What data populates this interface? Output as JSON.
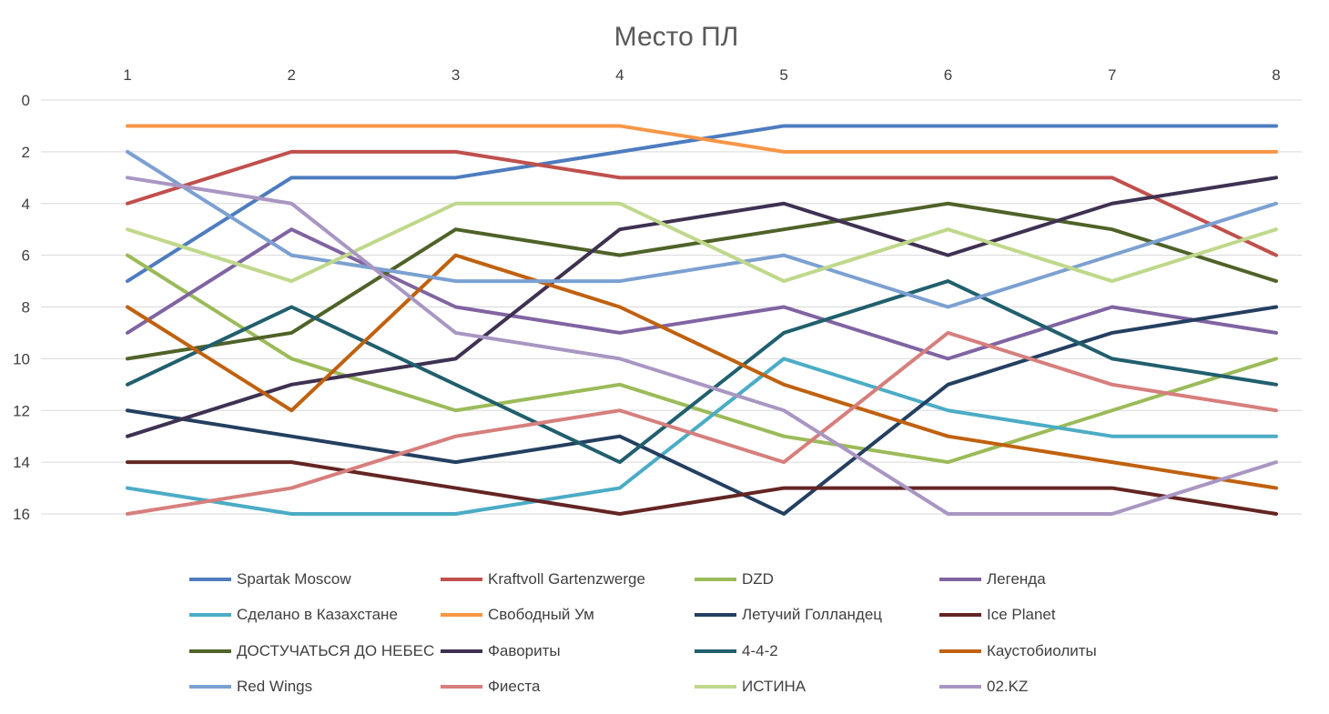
{
  "chart_data": {
    "type": "line",
    "title": "Место ПЛ",
    "xlabel": "",
    "ylabel": "",
    "x": [
      1,
      2,
      3,
      4,
      5,
      6,
      7,
      8
    ],
    "x_tick_labels": [
      "1",
      "2",
      "3",
      "4",
      "5",
      "6",
      "7",
      "8"
    ],
    "x_axis_position": "top",
    "ylim": [
      0,
      16
    ],
    "y_reversed": true,
    "y_ticks": [
      0,
      2,
      4,
      6,
      8,
      10,
      12,
      14,
      16
    ],
    "y_tick_labels": [
      "0",
      "2",
      "4",
      "6",
      "8",
      "10",
      "12",
      "14",
      "16"
    ],
    "grid": true,
    "legend_position": "bottom",
    "series": [
      {
        "name": "Spartak Moscow",
        "color": "#4e7cbf",
        "values": [
          7,
          3,
          3,
          2,
          1,
          1,
          1,
          1
        ]
      },
      {
        "name": "Kraftvoll Gartenzwerge",
        "color": "#c0504d",
        "values": [
          4,
          2,
          2,
          3,
          3,
          3,
          3,
          6
        ]
      },
      {
        "name": "DZD",
        "color": "#9bbb59",
        "values": [
          6,
          10,
          12,
          11,
          13,
          14,
          12,
          10
        ]
      },
      {
        "name": "Легенда",
        "color": "#8064a2",
        "values": [
          9,
          5,
          8,
          9,
          8,
          10,
          8,
          9
        ]
      },
      {
        "name": "Сделано в Казахстане",
        "color": "#4bacc6",
        "values": [
          15,
          16,
          16,
          15,
          10,
          12,
          13,
          13
        ]
      },
      {
        "name": "Свободный Ум",
        "color": "#f79646",
        "values": [
          1,
          1,
          1,
          1,
          2,
          2,
          2,
          2
        ]
      },
      {
        "name": "Летучий Голландец",
        "color": "#243f60",
        "values": [
          12,
          13,
          14,
          13,
          16,
          11,
          9,
          8
        ]
      },
      {
        "name": "Ice Planet",
        "color": "#632523",
        "values": [
          14,
          14,
          15,
          16,
          15,
          15,
          15,
          16
        ]
      },
      {
        "name": "ДОСТУЧАТЬСЯ ДО НЕБЕС",
        "color": "#4f6228",
        "values": [
          10,
          9,
          5,
          6,
          5,
          4,
          5,
          7
        ]
      },
      {
        "name": "Фавориты",
        "color": "#3f3151",
        "values": [
          13,
          11,
          10,
          5,
          4,
          6,
          4,
          3
        ]
      },
      {
        "name": "4-4-2",
        "color": "#215f6d",
        "values": [
          11,
          8,
          11,
          14,
          9,
          7,
          10,
          11
        ]
      },
      {
        "name": "Каустобиолиты",
        "color": "#c0610f",
        "values": [
          8,
          12,
          6,
          8,
          11,
          13,
          14,
          15
        ]
      },
      {
        "name": "Red Wings",
        "color": "#7ba0d1",
        "values": [
          2,
          6,
          7,
          7,
          6,
          8,
          6,
          4
        ]
      },
      {
        "name": "Фиеста",
        "color": "#d67f7d",
        "values": [
          16,
          15,
          13,
          12,
          14,
          9,
          11,
          12
        ]
      },
      {
        "name": "ИСТИНА",
        "color": "#bfd88b",
        "values": [
          5,
          7,
          4,
          4,
          7,
          5,
          7,
          5
        ]
      },
      {
        "name": "02.KZ",
        "color": "#a996c2",
        "values": [
          3,
          4,
          9,
          10,
          12,
          16,
          16,
          14
        ]
      }
    ]
  }
}
